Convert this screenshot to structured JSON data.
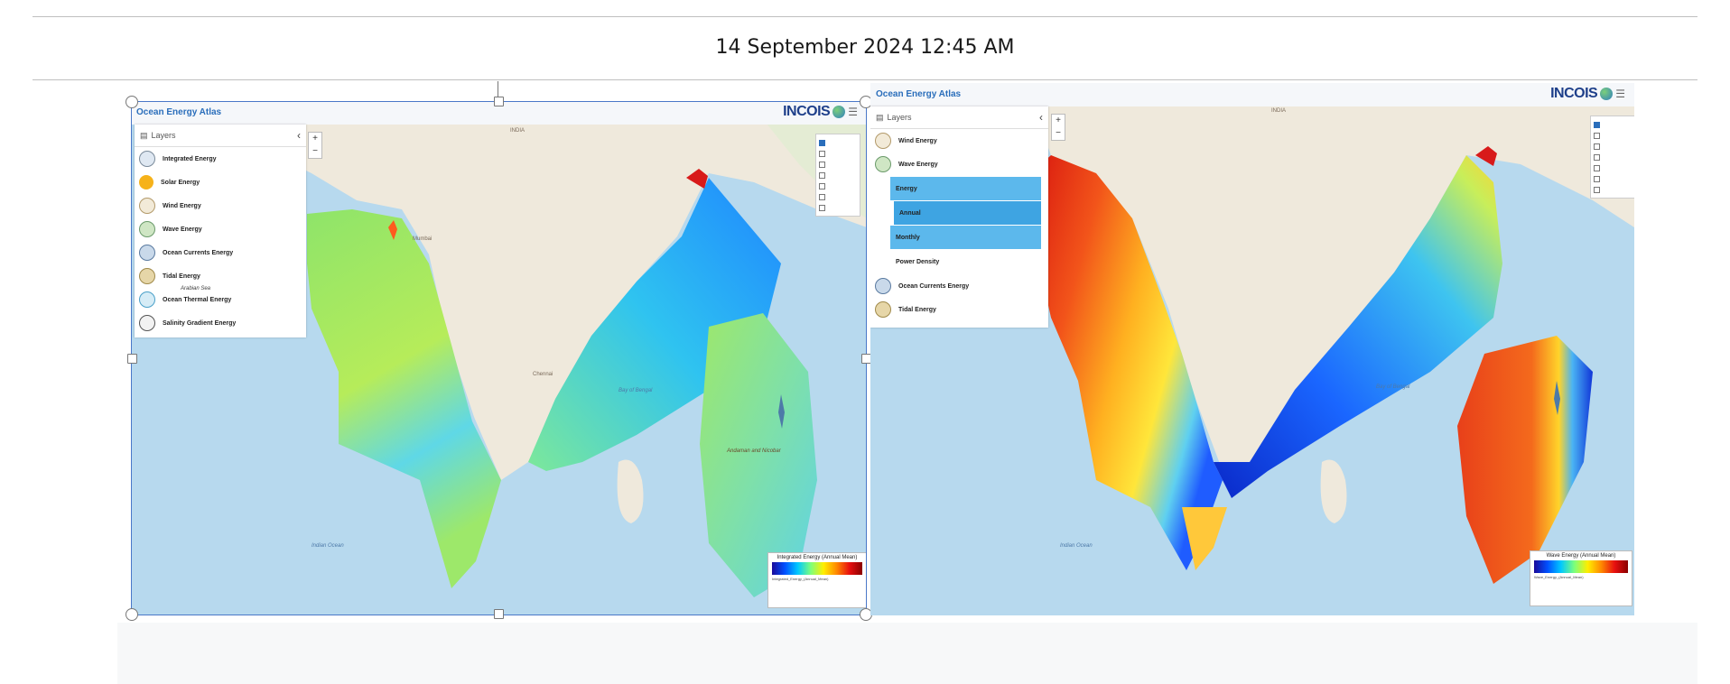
{
  "datetime": "14 September 2024 12:45 AM",
  "left": {
    "app_title": "Ocean Energy Atlas",
    "brand": "INCOIS",
    "layers_header": "Layers",
    "layers": [
      {
        "label": "Integrated Energy",
        "icon": "integrated-energy-icon"
      },
      {
        "label": "Solar Energy",
        "icon": "sun-icon"
      },
      {
        "label": "Wind Energy",
        "icon": "wind-turbine-icon"
      },
      {
        "label": "Wave Energy",
        "icon": "wave-icon"
      },
      {
        "label": "Ocean Currents Energy",
        "icon": "current-icon"
      },
      {
        "label": "Tidal Energy",
        "icon": "tide-icon"
      },
      {
        "label": "Ocean Thermal Energy",
        "icon": "thermal-icon"
      },
      {
        "label": "Salinity Gradient Energy",
        "icon": "salinity-icon"
      }
    ],
    "legend_title": "Integrated Energy (Annual Mean)",
    "legend_foot": "Integrated_Energy_(Annual_Mean)",
    "map_labels": {
      "country": "INDIA",
      "bay": "Bay of Bengal",
      "ocean": "Indian Ocean",
      "islands": "Andaman and Nicobar",
      "sea": "Arabian Sea",
      "city1": "Mumbai",
      "city2": "Chennai"
    }
  },
  "right": {
    "app_title": "Ocean Energy Atlas",
    "brand": "INCOIS",
    "layers_header": "Layers",
    "layers_top": [
      {
        "label": "Wind Energy",
        "icon": "wind-turbine-icon"
      },
      {
        "label": "Wave Energy",
        "icon": "wave-icon"
      }
    ],
    "sublayers": [
      {
        "label": "Energy",
        "style": "hl"
      },
      {
        "label": "Annual",
        "style": "hl2"
      },
      {
        "label": "Monthly",
        "style": "hl"
      },
      {
        "label": "Power Density",
        "style": "plain"
      }
    ],
    "layers_bottom": [
      {
        "label": "Ocean Currents Energy",
        "icon": "current-icon"
      },
      {
        "label": "Tidal Energy",
        "icon": "tide-icon"
      }
    ],
    "legend_title": "Wave Energy (Annual Mean)",
    "legend_foot": "Wave_Energy_(Annual_Mean)",
    "map_labels": {
      "country": "INDIA",
      "bay": "Bay of Bengal",
      "ocean": "Indian Ocean"
    }
  },
  "colors": {
    "sea": "#b7d9ee",
    "land": "#efe9dc",
    "accent": "#2a6ebb",
    "frame": "#4a78c8"
  }
}
